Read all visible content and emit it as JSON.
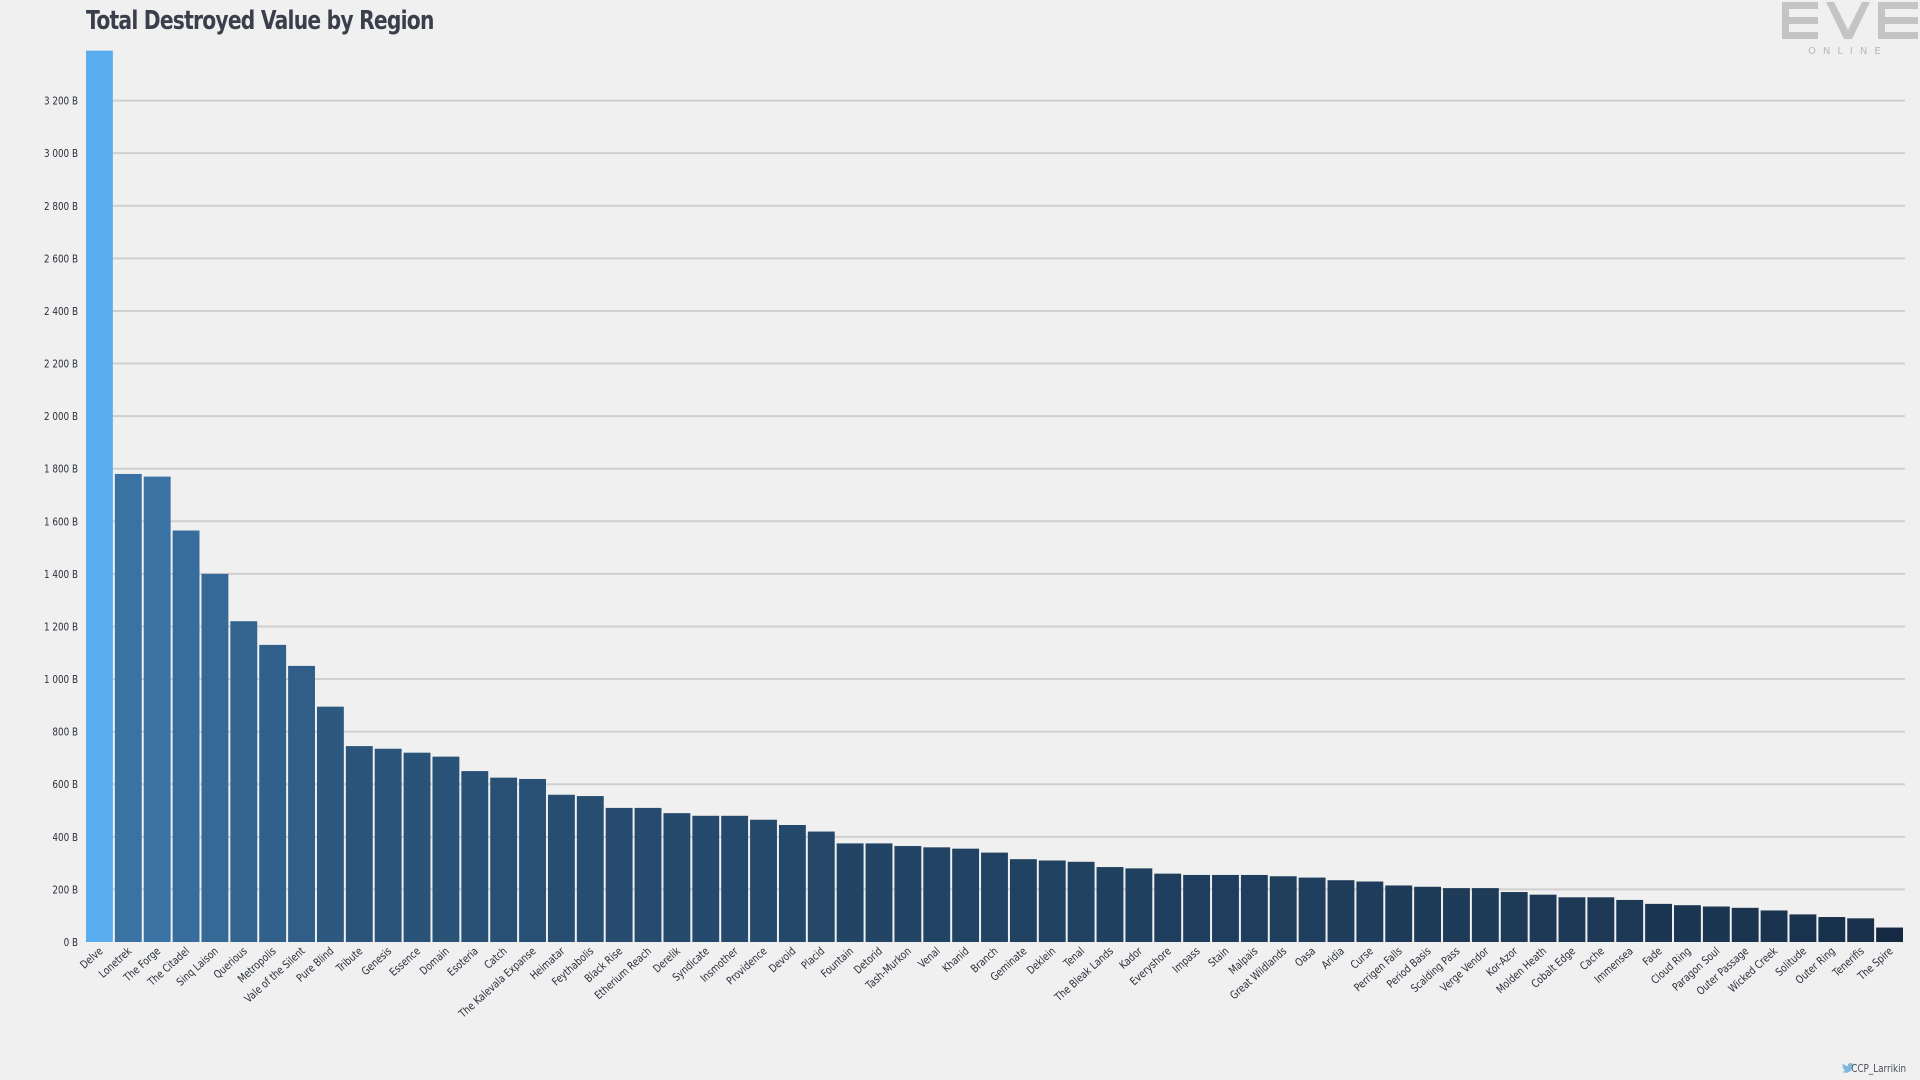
{
  "chart_data": {
    "type": "bar",
    "title": "Total Destroyed Value by Region",
    "xlabel": "",
    "ylabel": "",
    "ylim": [
      0,
      3400
    ],
    "yticks": [
      0,
      200,
      400,
      600,
      800,
      1000,
      1200,
      1400,
      1600,
      1800,
      2000,
      2200,
      2400,
      2600,
      2800,
      3000,
      3200
    ],
    "ytick_labels": [
      "0 B",
      "200 B",
      "400 B",
      "600 B",
      "800 B",
      "1 000 B",
      "1 200 B",
      "1 400 B",
      "1 600 B",
      "1 800 B",
      "2 000 B",
      "2 200 B",
      "2 400 B",
      "2 600 B",
      "2 800 B",
      "3 000 B",
      "3 200 B"
    ],
    "grid": true,
    "legend": "none",
    "categories": [
      "Delve",
      "Lonetrek",
      "The Forge",
      "The Citadel",
      "Sinq Laison",
      "Querious",
      "Metropolis",
      "Vale of the Silent",
      "Pure Blind",
      "Tribute",
      "Genesis",
      "Essence",
      "Domain",
      "Esoteria",
      "Catch",
      "The Kalevala Expanse",
      "Heimatar",
      "Feythabolis",
      "Black Rise",
      "Etherium Reach",
      "Derelik",
      "Syndicate",
      "Insmother",
      "Providence",
      "Devoid",
      "Placid",
      "Fountain",
      "Detorid",
      "Tash-Murkon",
      "Venal",
      "Khanid",
      "Branch",
      "Geminate",
      "Deklein",
      "Tenal",
      "The Bleak Lands",
      "Kador",
      "Everyshore",
      "Impass",
      "Stain",
      "Malpais",
      "Great Wildlands",
      "Oasa",
      "Aridia",
      "Curse",
      "Perrigen Falls",
      "Period Basis",
      "Scalding Pass",
      "Verge Vendor",
      "Kor-Azor",
      "Molden Heath",
      "Cobalt Edge",
      "Cache",
      "Immensea",
      "Fade",
      "Cloud Ring",
      "Paragon Soul",
      "Outer Passage",
      "Wicked Creek",
      "Solitude",
      "Outer Ring",
      "Tenerifis",
      "The Spire"
    ],
    "values": [
      3390,
      1780,
      1770,
      1565,
      1400,
      1220,
      1130,
      1050,
      895,
      745,
      735,
      720,
      705,
      650,
      625,
      620,
      560,
      555,
      510,
      510,
      490,
      480,
      480,
      465,
      445,
      420,
      375,
      375,
      365,
      360,
      355,
      340,
      315,
      310,
      305,
      285,
      280,
      260,
      255,
      255,
      255,
      250,
      245,
      235,
      230,
      215,
      210,
      205,
      205,
      190,
      180,
      170,
      170,
      160,
      145,
      140,
      135,
      130,
      120,
      105,
      95,
      90,
      55
    ],
    "colors": {
      "highlight": "#5aaef0",
      "bar_dark": "#152a42",
      "bar_light": "#3a73a3",
      "grid": "#cfcfcf",
      "axis_text": "#2a2f3a"
    }
  },
  "logo": {
    "name": "eve-online-logo",
    "text": "ONLINE"
  },
  "credit": {
    "icon": "twitter-bird-icon",
    "text": "CCP_Larrikin"
  }
}
